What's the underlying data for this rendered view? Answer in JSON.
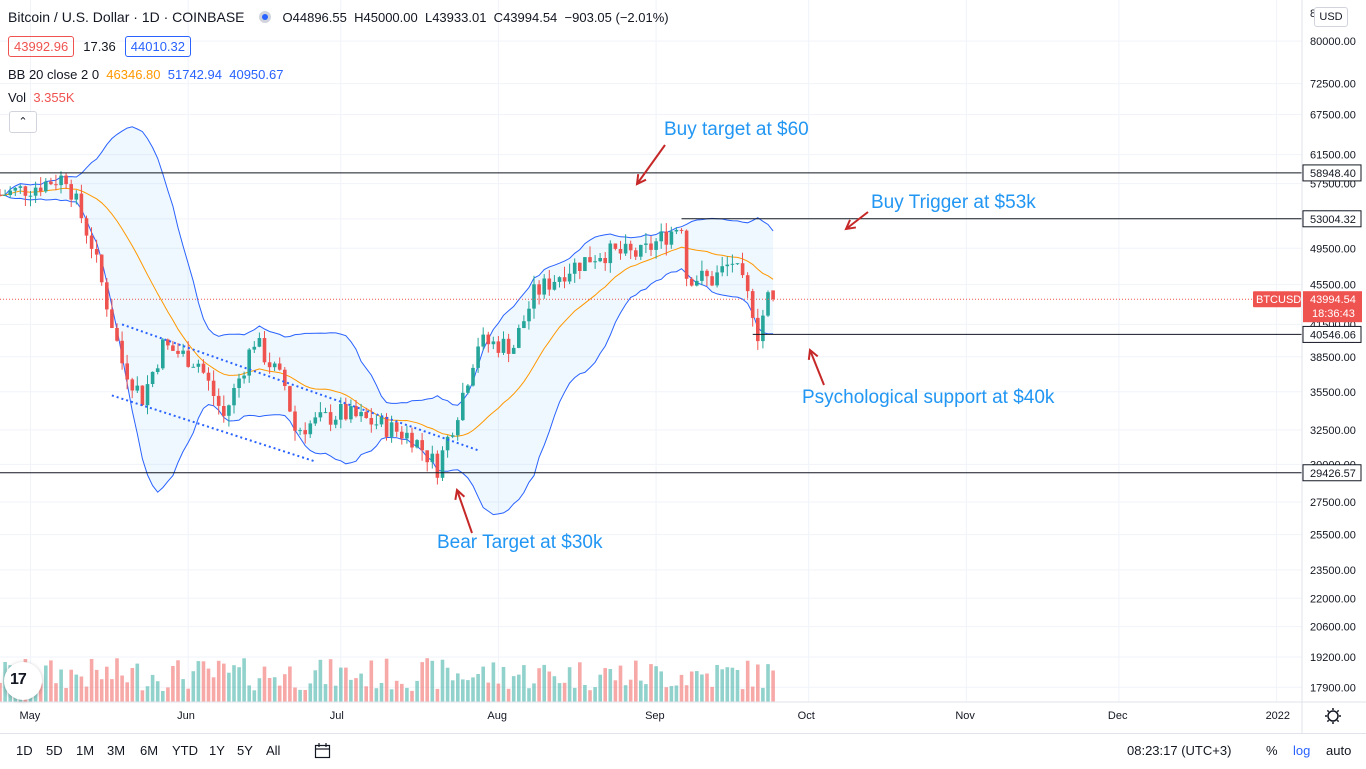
{
  "header": {
    "symbol": "Bitcoin / U.S. Dollar · 1D · COINBASE",
    "o_label": "O",
    "o_value": "44896.55",
    "h_label": "H",
    "h_value": "45000.00",
    "l_label": "L",
    "l_value": "43933.01",
    "c_label": "C",
    "c_value": "43994.54",
    "change": "−903.05 (−2.01%)"
  },
  "quote": {
    "bid": "43992.96",
    "spread": "17.36",
    "ask": "44010.32"
  },
  "indicators": {
    "bb_label": "BB 20 close 2 0",
    "bb_basis": "46346.80",
    "bb_upper": "51742.94",
    "bb_lower": "40950.67",
    "vol_label": "Vol",
    "vol_value": "3.355K"
  },
  "currency": "USD",
  "colors": {
    "up": "#26a69a",
    "down": "#ef5350",
    "band": "#2962ff",
    "basis": "#ff9800",
    "annotation": "#2196f3",
    "arrow": "#c62828"
  },
  "chart_data": {
    "type": "candlestick",
    "title": "Bitcoin / U.S. Dollar · 1D · COINBASE",
    "y_scale": "log",
    "ylim": [
      17300,
      88000
    ],
    "price_ticks": [
      "80000.00",
      "72500.00",
      "67500.00",
      "61500.00",
      "57500.00",
      "53000.00",
      "49500.00",
      "45500.00",
      "41500.00",
      "38500.00",
      "35500.00",
      "32500.00",
      "30000.00",
      "27500.00",
      "25500.00",
      "23500.00",
      "22000.00",
      "20600.00",
      "19200.00",
      "17900.00"
    ],
    "top_tick_partial": "8",
    "time_labels": [
      "May",
      "Jun",
      "Jul",
      "Aug",
      "Sep",
      "Oct",
      "Nov",
      "Dec",
      "2022"
    ],
    "x_range": [
      "2021-04-25",
      "2022-01-06"
    ],
    "horizontal_levels": [
      {
        "value": 58948.4,
        "label": "58948.40"
      },
      {
        "value": 53004.32,
        "label": "53004.32"
      },
      {
        "value": 40546.06,
        "label": "40546.06"
      },
      {
        "value": 29426.57,
        "label": "29426.57"
      }
    ],
    "last_price": {
      "symbol": "BTCUSD",
      "value": "43994.54",
      "countdown": "18:36:43"
    },
    "annotations": [
      "Buy target at $60",
      "Buy Trigger at $53k",
      "Psychological support at $40k",
      "Bear Target at $30k"
    ],
    "closes": [
      {
        "date": "2021-04-25",
        "close": 56000
      },
      {
        "date": "2021-05-01",
        "close": 57000
      },
      {
        "date": "2021-05-08",
        "close": 58500
      },
      {
        "date": "2021-05-13",
        "close": 50000
      },
      {
        "date": "2021-05-19",
        "close": 38000
      },
      {
        "date": "2021-05-23",
        "close": 35000
      },
      {
        "date": "2021-05-27",
        "close": 39500
      },
      {
        "date": "2021-06-03",
        "close": 38000
      },
      {
        "date": "2021-06-08",
        "close": 33500
      },
      {
        "date": "2021-06-14",
        "close": 40000
      },
      {
        "date": "2021-06-20",
        "close": 36000
      },
      {
        "date": "2021-06-22",
        "close": 32500
      },
      {
        "date": "2021-07-01",
        "close": 33800
      },
      {
        "date": "2021-07-08",
        "close": 33000
      },
      {
        "date": "2021-07-15",
        "close": 32000
      },
      {
        "date": "2021-07-20",
        "close": 29800
      },
      {
        "date": "2021-07-24",
        "close": 34000
      },
      {
        "date": "2021-07-28",
        "close": 39800
      },
      {
        "date": "2021-08-04",
        "close": 39500
      },
      {
        "date": "2021-08-08",
        "close": 44500
      },
      {
        "date": "2021-08-14",
        "close": 47000
      },
      {
        "date": "2021-08-21",
        "close": 49000
      },
      {
        "date": "2021-08-29",
        "close": 48800
      },
      {
        "date": "2021-09-06",
        "close": 52500
      },
      {
        "date": "2021-09-07",
        "close": 46500
      },
      {
        "date": "2021-09-12",
        "close": 46000
      },
      {
        "date": "2021-09-16",
        "close": 48000
      },
      {
        "date": "2021-09-20",
        "close": 43000
      },
      {
        "date": "2021-09-21",
        "close": 40700
      },
      {
        "date": "2021-09-23",
        "close": 44200
      },
      {
        "date": "2021-09-24",
        "close": 43994.54
      }
    ]
  },
  "bottom": {
    "timeframes": [
      "1D",
      "5D",
      "1M",
      "3M",
      "6M",
      "YTD",
      "1Y",
      "5Y",
      "All"
    ],
    "clock": "08:23:17 (UTC+3)",
    "pct": "%",
    "log": "log",
    "auto": "auto"
  },
  "logo_text": "17"
}
